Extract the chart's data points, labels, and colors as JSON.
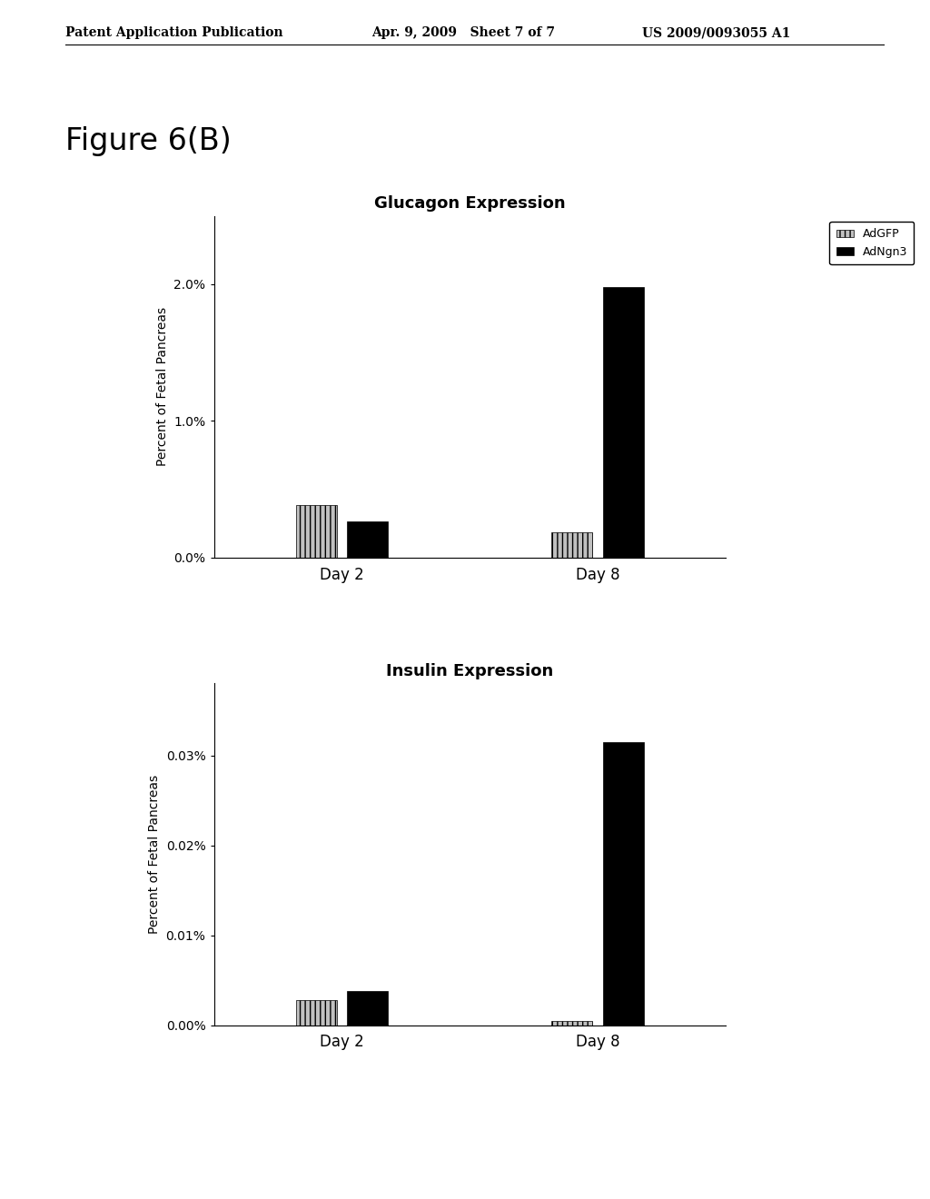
{
  "fig_label": "Figure 6(B)",
  "header_left": "Patent Application Publication",
  "header_center": "Apr. 9, 2009   Sheet 7 of 7",
  "header_right": "US 2009/0093055 A1",
  "chart1": {
    "title": "Glucagon Expression",
    "ylabel": "Percent of Fetal Pancreas",
    "groups": [
      "Day 2",
      "Day 8"
    ],
    "adgfp_values": [
      0.00385,
      0.00185
    ],
    "adngn3_values": [
      0.00265,
      0.0198
    ],
    "ylim": [
      0,
      0.025
    ],
    "yticks": [
      0.0,
      0.01,
      0.02
    ],
    "yticklabels": [
      "0.0%",
      "1.0%",
      "2.0%"
    ]
  },
  "chart2": {
    "title": "Insulin Expression",
    "ylabel": "Percent of Fetal Pancreas",
    "groups": [
      "Day 2",
      "Day 8"
    ],
    "adgfp_values": [
      2.8e-05,
      5e-06
    ],
    "adngn3_values": [
      3.8e-05,
      0.000315
    ],
    "ylim": [
      0,
      0.00038
    ],
    "yticks": [
      0.0,
      0.0001,
      0.0002,
      0.0003
    ],
    "yticklabels": [
      "0.00%",
      "0.01%",
      "0.02%",
      "0.03%"
    ]
  },
  "legend_labels": [
    "AdGFP",
    "AdNgn3"
  ],
  "adgfp_color": "#c0c0c0",
  "adngn3_color": "#000000",
  "adgfp_hatch": "|||",
  "background_color": "#ffffff"
}
